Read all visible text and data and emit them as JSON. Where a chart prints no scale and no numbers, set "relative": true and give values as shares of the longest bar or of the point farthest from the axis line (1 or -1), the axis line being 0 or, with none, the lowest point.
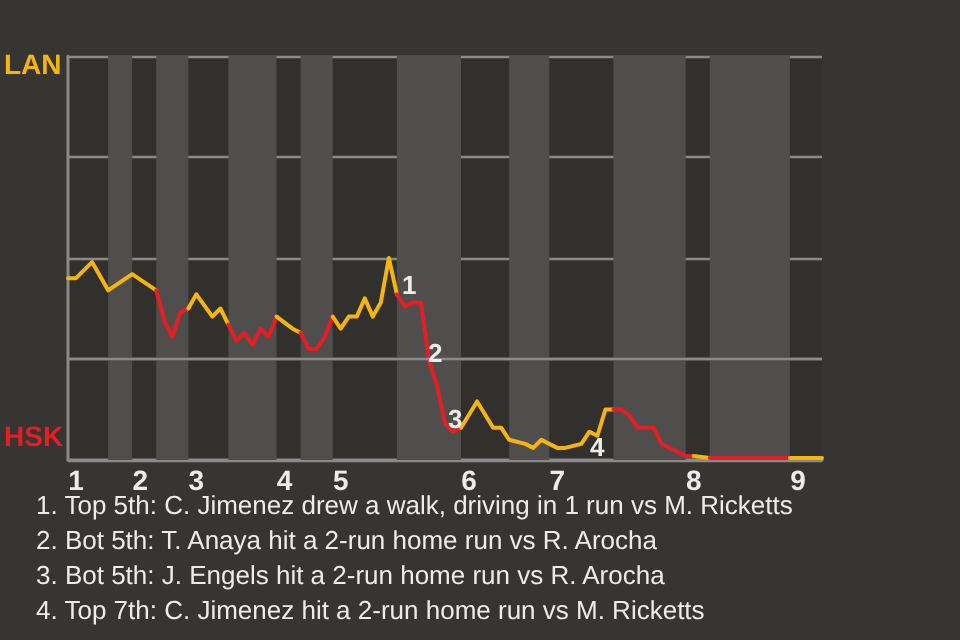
{
  "chart_data": {
    "type": "line",
    "relative": true,
    "categories": [
      null,
      "1",
      null,
      null,
      null,
      null,
      null,
      null,
      null,
      "2",
      null,
      null,
      null,
      null,
      null,
      null,
      "3",
      null,
      null,
      null,
      null,
      null,
      null,
      null,
      null,
      null,
      null,
      "4",
      null,
      null,
      null,
      null,
      null,
      null,
      "5",
      null,
      null,
      null,
      null,
      null,
      null,
      null,
      null,
      null,
      null,
      null,
      null,
      null,
      null,
      null,
      "6",
      null,
      null,
      null,
      null,
      null,
      null,
      null,
      null,
      null,
      null,
      "7",
      null,
      null,
      null,
      null,
      null,
      null,
      null,
      null,
      null,
      null,
      null,
      null,
      null,
      null,
      null,
      null,
      "8",
      null,
      null,
      null,
      null,
      null,
      null,
      null,
      null,
      null,
      null,
      null,
      null,
      "9",
      null,
      null,
      null
    ],
    "grid": "y",
    "marker": "none",
    "line_style": "solid",
    "series": [
      {
        "color": "#f5b50f",
        "values": [
          0.9,
          0.9,
          null,
          0.98,
          null,
          0.84,
          null,
          null,
          0.92,
          null,
          null,
          0.84,
          null,
          null,
          null,
          null,
          null,
          null,
          null,
          null,
          null,
          null,
          null,
          null,
          null,
          null,
          null,
          null,
          null,
          null,
          null,
          null,
          null,
          null,
          null,
          null,
          null,
          null,
          null,
          null,
          null,
          null,
          null,
          null,
          null,
          null,
          null,
          null,
          null,
          null,
          null,
          null,
          null,
          null,
          null,
          null,
          null,
          null,
          null,
          null,
          null,
          null,
          null,
          null,
          null,
          null,
          null,
          null,
          null,
          null,
          null,
          null,
          null,
          null,
          null,
          null,
          null,
          null,
          null,
          null,
          null,
          null,
          null,
          null,
          null,
          null,
          null,
          null,
          null,
          null,
          null,
          null,
          null,
          null,
          null
        ]
      },
      {
        "color": "#e51e25",
        "values": [
          null,
          null,
          null,
          null,
          null,
          null,
          null,
          null,
          null,
          null,
          null,
          0.84,
          0.69,
          0.61,
          0.73,
          0.75,
          null,
          null,
          null,
          null,
          null,
          null,
          null,
          null,
          null,
          null,
          null,
          null,
          null,
          null,
          null,
          null,
          null,
          null,
          null,
          null,
          null,
          null,
          null,
          null,
          null,
          null,
          null,
          null,
          null,
          null,
          null,
          null,
          null,
          null,
          null,
          null,
          null,
          null,
          null,
          null,
          null,
          null,
          null,
          null,
          null,
          null,
          null,
          null,
          null,
          null,
          null,
          null,
          null,
          null,
          null,
          null,
          null,
          null,
          null,
          null,
          null,
          null,
          null,
          null,
          null,
          null,
          null,
          null,
          null,
          null,
          null,
          null,
          null,
          null,
          null,
          null,
          null,
          null,
          null
        ]
      },
      {
        "color": "#f5b50f",
        "values": [
          null,
          null,
          null,
          null,
          null,
          null,
          null,
          null,
          null,
          null,
          null,
          null,
          null,
          null,
          null,
          0.75,
          0.82,
          null,
          0.71,
          0.75,
          0.67,
          null,
          null,
          null,
          null,
          null,
          null,
          null,
          null,
          null,
          null,
          null,
          null,
          null,
          null,
          null,
          null,
          null,
          null,
          null,
          null,
          null,
          null,
          null,
          null,
          null,
          null,
          null,
          null,
          null,
          null,
          null,
          null,
          null,
          null,
          null,
          null,
          null,
          null,
          null,
          null,
          null,
          null,
          null,
          null,
          null,
          null,
          null,
          null,
          null,
          null,
          null,
          null,
          null,
          null,
          null,
          null,
          null,
          null,
          null,
          null,
          null,
          null,
          null,
          null,
          null,
          null,
          null,
          null,
          null,
          null,
          null,
          null,
          null,
          null
        ]
      },
      {
        "color": "#e51e25",
        "values": [
          null,
          null,
          null,
          null,
          null,
          null,
          null,
          null,
          null,
          null,
          null,
          null,
          null,
          null,
          null,
          null,
          null,
          null,
          null,
          null,
          0.67,
          0.59,
          0.63,
          0.57,
          0.65,
          0.61,
          0.71,
          null,
          null,
          null,
          null,
          null,
          null,
          null,
          null,
          null,
          null,
          null,
          null,
          null,
          null,
          null,
          null,
          null,
          null,
          null,
          null,
          null,
          null,
          null,
          null,
          null,
          null,
          null,
          null,
          null,
          null,
          null,
          null,
          null,
          null,
          null,
          null,
          null,
          null,
          null,
          null,
          null,
          null,
          null,
          null,
          null,
          null,
          null,
          null,
          null,
          null,
          null,
          null,
          null,
          null,
          null,
          null,
          null,
          null,
          null,
          null,
          null,
          null,
          null,
          null,
          null,
          null,
          null,
          null
        ]
      },
      {
        "color": "#f5b50f",
        "values": [
          null,
          null,
          null,
          null,
          null,
          null,
          null,
          null,
          null,
          null,
          null,
          null,
          null,
          null,
          null,
          null,
          null,
          null,
          null,
          null,
          null,
          null,
          null,
          null,
          null,
          null,
          0.71,
          null,
          0.65,
          0.63,
          null,
          null,
          null,
          null,
          null,
          null,
          null,
          null,
          null,
          null,
          null,
          null,
          null,
          null,
          null,
          null,
          null,
          null,
          null,
          null,
          null,
          null,
          null,
          null,
          null,
          null,
          null,
          null,
          null,
          null,
          null,
          null,
          null,
          null,
          null,
          null,
          null,
          null,
          null,
          null,
          null,
          null,
          null,
          null,
          null,
          null,
          null,
          null,
          null,
          null,
          null,
          null,
          null,
          null,
          null,
          null,
          null,
          null,
          null,
          null,
          null,
          null,
          null,
          null,
          null
        ]
      },
      {
        "color": "#e51e25",
        "values": [
          null,
          null,
          null,
          null,
          null,
          null,
          null,
          null,
          null,
          null,
          null,
          null,
          null,
          null,
          null,
          null,
          null,
          null,
          null,
          null,
          null,
          null,
          null,
          null,
          null,
          null,
          null,
          null,
          null,
          0.63,
          0.55,
          0.55,
          0.61,
          0.71,
          null,
          null,
          null,
          null,
          null,
          null,
          null,
          null,
          null,
          null,
          null,
          null,
          null,
          null,
          null,
          null,
          null,
          null,
          null,
          null,
          null,
          null,
          null,
          null,
          null,
          null,
          null,
          null,
          null,
          null,
          null,
          null,
          null,
          null,
          null,
          null,
          null,
          null,
          null,
          null,
          null,
          null,
          null,
          null,
          null,
          null,
          null,
          null,
          null,
          null,
          null,
          null,
          null,
          null,
          null,
          null,
          null,
          null,
          null,
          null,
          null
        ]
      },
      {
        "color": "#f5b50f",
        "values": [
          null,
          null,
          null,
          null,
          null,
          null,
          null,
          null,
          null,
          null,
          null,
          null,
          null,
          null,
          null,
          null,
          null,
          null,
          null,
          null,
          null,
          null,
          null,
          null,
          null,
          null,
          null,
          null,
          null,
          null,
          null,
          null,
          null,
          0.71,
          0.65,
          0.71,
          0.71,
          0.8,
          0.71,
          0.78,
          1,
          0.82,
          null,
          null,
          null,
          null,
          null,
          null,
          null,
          null,
          null,
          null,
          null,
          null,
          null,
          null,
          null,
          null,
          null,
          null,
          null,
          null,
          null,
          null,
          null,
          null,
          null,
          null,
          null,
          null,
          null,
          null,
          null,
          null,
          null,
          null,
          null,
          null,
          null,
          null,
          null,
          null,
          null,
          null,
          null,
          null,
          null,
          null,
          null,
          null,
          null,
          null,
          null,
          null,
          null
        ]
      },
      {
        "color": "#e51e25",
        "values": [
          null,
          null,
          null,
          null,
          null,
          null,
          null,
          null,
          null,
          null,
          null,
          null,
          null,
          null,
          null,
          null,
          null,
          null,
          null,
          null,
          null,
          null,
          null,
          null,
          null,
          null,
          null,
          null,
          null,
          null,
          null,
          null,
          null,
          null,
          null,
          null,
          null,
          null,
          null,
          null,
          null,
          0.82,
          0.76,
          0.78,
          0.78,
          0.49,
          0.37,
          0.18,
          0.14,
          0.16,
          null,
          null,
          null,
          null,
          null,
          null,
          null,
          null,
          null,
          null,
          null,
          null,
          null,
          null,
          null,
          null,
          null,
          null,
          null,
          null,
          null,
          null,
          null,
          null,
          null,
          null,
          null,
          null,
          null,
          null,
          null,
          null,
          null,
          null,
          null,
          null,
          null,
          null,
          null,
          null,
          null,
          null,
          null,
          null,
          null
        ]
      },
      {
        "color": "#f5b50f",
        "values": [
          null,
          null,
          null,
          null,
          null,
          null,
          null,
          null,
          null,
          null,
          null,
          null,
          null,
          null,
          null,
          null,
          null,
          null,
          null,
          null,
          null,
          null,
          null,
          null,
          null,
          null,
          null,
          null,
          null,
          null,
          null,
          null,
          null,
          null,
          null,
          null,
          null,
          null,
          null,
          null,
          null,
          null,
          null,
          null,
          null,
          null,
          null,
          null,
          null,
          0.16,
          null,
          0.29,
          null,
          0.16,
          0.16,
          0.1,
          null,
          0.08,
          0.06,
          0.1,
          0.08,
          0.06,
          0.06,
          null,
          0.08,
          0.14,
          0.12,
          0.25,
          0.25,
          null,
          null,
          null,
          null,
          null,
          null,
          null,
          null,
          null,
          null,
          null,
          null,
          null,
          null,
          null,
          null,
          null,
          null,
          null,
          null,
          null,
          null,
          null,
          null,
          null,
          null
        ]
      },
      {
        "color": "#e51e25",
        "values": [
          null,
          null,
          null,
          null,
          null,
          null,
          null,
          null,
          null,
          null,
          null,
          null,
          null,
          null,
          null,
          null,
          null,
          null,
          null,
          null,
          null,
          null,
          null,
          null,
          null,
          null,
          null,
          null,
          null,
          null,
          null,
          null,
          null,
          null,
          null,
          null,
          null,
          null,
          null,
          null,
          null,
          null,
          null,
          null,
          null,
          null,
          null,
          null,
          null,
          null,
          null,
          null,
          null,
          null,
          null,
          null,
          null,
          null,
          null,
          null,
          null,
          null,
          null,
          null,
          null,
          null,
          null,
          null,
          0.25,
          0.25,
          0.22,
          0.16,
          null,
          0.16,
          0.08,
          0.06,
          null,
          0.02,
          0.02,
          null,
          null,
          null,
          null,
          null,
          null,
          null,
          null,
          null,
          null,
          null,
          null,
          null,
          null,
          null,
          null
        ]
      },
      {
        "color": "#f5b50f",
        "values": [
          null,
          null,
          null,
          null,
          null,
          null,
          null,
          null,
          null,
          null,
          null,
          null,
          null,
          null,
          null,
          null,
          null,
          null,
          null,
          null,
          null,
          null,
          null,
          null,
          null,
          null,
          null,
          null,
          null,
          null,
          null,
          null,
          null,
          null,
          null,
          null,
          null,
          null,
          null,
          null,
          null,
          null,
          null,
          null,
          null,
          null,
          null,
          null,
          null,
          null,
          null,
          null,
          null,
          null,
          null,
          null,
          null,
          null,
          null,
          null,
          null,
          null,
          null,
          null,
          null,
          null,
          null,
          null,
          null,
          null,
          null,
          null,
          null,
          null,
          null,
          null,
          null,
          null,
          0.02,
          null,
          0.01,
          null,
          null,
          null,
          null,
          null,
          null,
          null,
          null,
          null,
          null,
          null,
          null,
          null,
          null
        ]
      },
      {
        "color": "#e51e25",
        "values": [
          null,
          null,
          null,
          null,
          null,
          null,
          null,
          null,
          null,
          null,
          null,
          null,
          null,
          null,
          null,
          null,
          null,
          null,
          null,
          null,
          null,
          null,
          null,
          null,
          null,
          null,
          null,
          null,
          null,
          null,
          null,
          null,
          null,
          null,
          null,
          null,
          null,
          null,
          null,
          null,
          null,
          null,
          null,
          null,
          null,
          null,
          null,
          null,
          null,
          null,
          null,
          null,
          null,
          null,
          null,
          null,
          null,
          null,
          null,
          null,
          null,
          null,
          null,
          null,
          null,
          null,
          null,
          null,
          null,
          null,
          null,
          null,
          null,
          null,
          null,
          null,
          null,
          null,
          null,
          null,
          0.01,
          null,
          null,
          null,
          null,
          null,
          null,
          null,
          null,
          null,
          0.01,
          null,
          null,
          null,
          null
        ]
      },
      {
        "color": "#f5b50f",
        "values": [
          null,
          null,
          null,
          null,
          null,
          null,
          null,
          null,
          null,
          null,
          null,
          null,
          null,
          null,
          null,
          null,
          null,
          null,
          null,
          null,
          null,
          null,
          null,
          null,
          null,
          null,
          null,
          null,
          null,
          null,
          null,
          null,
          null,
          null,
          null,
          null,
          null,
          null,
          null,
          null,
          null,
          null,
          null,
          null,
          null,
          null,
          null,
          null,
          null,
          null,
          null,
          null,
          null,
          null,
          null,
          null,
          null,
          null,
          null,
          null,
          null,
          null,
          null,
          null,
          null,
          null,
          null,
          null,
          null,
          null,
          null,
          null,
          null,
          null,
          null,
          null,
          null,
          null,
          null,
          null,
          null,
          null,
          null,
          null,
          null,
          null,
          null,
          null,
          null,
          null,
          0.01,
          null,
          null,
          null,
          0.01
        ]
      }
    ],
    "ref_lines": [
      {
        "axis": "y",
        "value": 0.5,
        "color": "#8a8a8a"
      }
    ],
    "annotations": [
      "LAN",
      "HSK",
      "1",
      "2",
      "3",
      "4",
      "1. Top 5th: C. Jimenez drew a walk, driving in 1 run vs M. Ricketts",
      "2. Bot 5th: T. Anaya hit a 2-run home run vs R. Arocha",
      "3. Bot 5th: J. Engels hit a 2-run home run vs R. Arocha",
      "4. Top 7th: C. Jimenez hit a 2-run home run vs M. Ricketts"
    ]
  }
}
